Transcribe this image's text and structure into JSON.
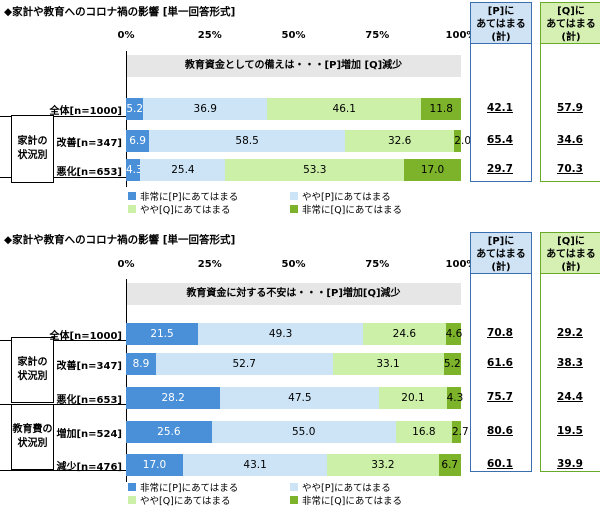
{
  "colors": {
    "very_p": "#4a90d9",
    "some_p": "#cce4f6",
    "some_q": "#ccf0a8",
    "very_q": "#7cb32a",
    "p_col_border": "#3a6fb0",
    "p_col_head": "#cfe3f5",
    "q_col_border": "#6aaa2a",
    "q_col_head": "#d6f0b4"
  },
  "legend": [
    {
      "label": "非常に[P]にあてはまる",
      "color_key": "very_p"
    },
    {
      "label": "やや[P]にあてはまる",
      "color_key": "some_p"
    },
    {
      "label": "やや[Q]にあてはまる",
      "color_key": "some_q"
    },
    {
      "label": "非常に[Q]にあてはまる",
      "color_key": "very_q"
    }
  ],
  "sum_headers": {
    "p": "[P]に\nあてはまる\n(計)",
    "q": "[Q]に\nあてはまる\n(計)"
  },
  "chart_data": [
    {
      "type": "bar",
      "stacked": true,
      "orientation": "horizontal",
      "title": "◆家計や教育へのコロナ禍の影響 [単一回答形式]",
      "caption": "教育資金としての備えは・・・[P]増加 [Q]減少",
      "x_ticks": [
        "0%",
        "25%",
        "50%",
        "75%",
        "100%"
      ],
      "xlim": [
        0,
        100
      ],
      "groups": [
        {
          "label": "家計の\n状況別",
          "rows": [
            1,
            2
          ]
        }
      ],
      "rows": [
        {
          "label": "全体[n=1000]",
          "values": [
            5.2,
            36.9,
            46.1,
            11.8
          ],
          "sum_p": "42.1",
          "sum_q": "57.9"
        },
        {
          "label": "改善[n=347]",
          "values": [
            6.9,
            58.5,
            32.6,
            2.0
          ],
          "sum_p": "65.4",
          "sum_q": "34.6"
        },
        {
          "label": "悪化[n=653]",
          "values": [
            4.3,
            25.4,
            53.3,
            17.0
          ],
          "sum_p": "29.7",
          "sum_q": "70.3"
        }
      ],
      "value_labels": [
        [
          "5.2",
          "36.9",
          "46.1",
          "11.8"
        ],
        [
          "6.9",
          "58.5",
          "32.6",
          "2.0"
        ],
        [
          "4.3",
          "25.4",
          "53.3",
          "17.0"
        ]
      ]
    },
    {
      "type": "bar",
      "stacked": true,
      "orientation": "horizontal",
      "title": "◆家計や教育へのコロナ禍の影響 [単一回答形式]",
      "caption": "教育資金に対する不安は・・・[P]増加[Q]減少",
      "x_ticks": [
        "0%",
        "25%",
        "50%",
        "75%",
        "100%"
      ],
      "xlim": [
        0,
        100
      ],
      "groups": [
        {
          "label": "家計の\n状況別",
          "rows": [
            1,
            2
          ]
        },
        {
          "label": "教育費の\n状況別",
          "rows": [
            3,
            4
          ]
        }
      ],
      "rows": [
        {
          "label": "全体[n=1000]",
          "values": [
            21.5,
            49.3,
            24.6,
            4.6
          ],
          "sum_p": "70.8",
          "sum_q": "29.2"
        },
        {
          "label": "改善[n=347]",
          "values": [
            8.9,
            52.7,
            33.1,
            5.2
          ],
          "sum_p": "61.6",
          "sum_q": "38.3"
        },
        {
          "label": "悪化[n=653]",
          "values": [
            28.2,
            47.5,
            20.1,
            4.3
          ],
          "sum_p": "75.7",
          "sum_q": "24.4"
        },
        {
          "label": "増加[n=524]",
          "values": [
            25.6,
            55.0,
            16.8,
            2.7
          ],
          "sum_p": "80.6",
          "sum_q": "19.5"
        },
        {
          "label": "減少[n=476]",
          "values": [
            17.0,
            43.1,
            33.2,
            6.7
          ],
          "sum_p": "60.1",
          "sum_q": "39.9"
        }
      ],
      "value_labels": [
        [
          "21.5",
          "49.3",
          "24.6",
          "4.6"
        ],
        [
          "8.9",
          "52.7",
          "33.1",
          "5.2"
        ],
        [
          "28.2",
          "47.5",
          "20.1",
          "4.3"
        ],
        [
          "25.6",
          "55.0",
          "16.8",
          "2.7"
        ],
        [
          "17.0",
          "43.1",
          "33.2",
          "6.7"
        ]
      ]
    }
  ]
}
